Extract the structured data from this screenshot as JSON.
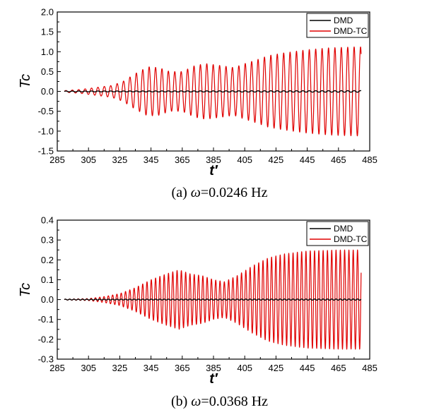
{
  "chart_data": [
    {
      "type": "line",
      "caption_prefix": "(a) ",
      "caption_symbol": "ω",
      "caption_rest": "=0.0246 Hz",
      "xlabel": "t′",
      "ylabel": "Tc",
      "xlim": [
        285,
        485
      ],
      "ylim": [
        -1.5,
        2.0
      ],
      "xticks": [
        "285",
        "305",
        "325",
        "345",
        "365",
        "385",
        "405",
        "425",
        "445",
        "465",
        "485"
      ],
      "yticks": [
        "-1.5",
        "-1.0",
        "-0.5",
        "0.0",
        "0.5",
        "1.0",
        "1.5",
        "2.0"
      ],
      "legend_position": "top-right",
      "series": [
        {
          "name": "DMD",
          "color": "#000000",
          "t_start": 289.5,
          "t_end": 479.5,
          "period": 4.1,
          "envelope": [
            [
              289.5,
              0.01
            ],
            [
              479.5,
              0.02
            ]
          ]
        },
        {
          "name": "DMD-TC",
          "color": "#e00000",
          "t_start": 289.5,
          "t_end": 479.5,
          "period": 4.1,
          "envelope": [
            [
              289.5,
              0.02
            ],
            [
              300,
              0.05
            ],
            [
              310,
              0.1
            ],
            [
              320,
              0.15
            ],
            [
              327,
              0.25
            ],
            [
              335,
              0.45
            ],
            [
              343,
              0.62
            ],
            [
              350,
              0.6
            ],
            [
              357,
              0.5
            ],
            [
              365,
              0.5
            ],
            [
              373,
              0.65
            ],
            [
              380,
              0.7
            ],
            [
              390,
              0.65
            ],
            [
              398,
              0.6
            ],
            [
              405,
              0.7
            ],
            [
              413,
              0.8
            ],
            [
              420,
              0.9
            ],
            [
              430,
              0.97
            ],
            [
              445,
              1.05
            ],
            [
              460,
              1.1
            ],
            [
              475,
              1.12
            ],
            [
              479.5,
              1.12
            ]
          ]
        }
      ]
    },
    {
      "type": "line",
      "caption_prefix": "(b) ",
      "caption_symbol": "ω",
      "caption_rest": "=0.0368 Hz",
      "xlabel": "t′",
      "ylabel": "Tc",
      "xlim": [
        285,
        485
      ],
      "ylim": [
        -0.3,
        0.4
      ],
      "xticks": [
        "285",
        "305",
        "325",
        "345",
        "365",
        "385",
        "405",
        "425",
        "445",
        "465",
        "485"
      ],
      "yticks": [
        "-0.3",
        "-0.2",
        "-0.1",
        "0.0",
        "0.1",
        "0.2",
        "0.3",
        "0.4"
      ],
      "legend_position": "top-right",
      "series": [
        {
          "name": "DMD",
          "color": "#000000",
          "t_start": 289.5,
          "t_end": 479.5,
          "period": 2.75,
          "envelope": [
            [
              289.5,
              0.002
            ],
            [
              479.5,
              0.003
            ]
          ]
        },
        {
          "name": "DMD-TC",
          "color": "#e00000",
          "t_start": 289.5,
          "t_end": 479.5,
          "period": 2.75,
          "envelope": [
            [
              289.5,
              0.002
            ],
            [
              305,
              0.005
            ],
            [
              315,
              0.015
            ],
            [
              325,
              0.03
            ],
            [
              335,
              0.06
            ],
            [
              345,
              0.1
            ],
            [
              355,
              0.13
            ],
            [
              363,
              0.15
            ],
            [
              370,
              0.13
            ],
            [
              378,
              0.12
            ],
            [
              385,
              0.1
            ],
            [
              392,
              0.09
            ],
            [
              400,
              0.12
            ],
            [
              410,
              0.17
            ],
            [
              420,
              0.21
            ],
            [
              430,
              0.23
            ],
            [
              445,
              0.245
            ],
            [
              465,
              0.25
            ],
            [
              479.5,
              0.25
            ]
          ]
        }
      ]
    }
  ]
}
